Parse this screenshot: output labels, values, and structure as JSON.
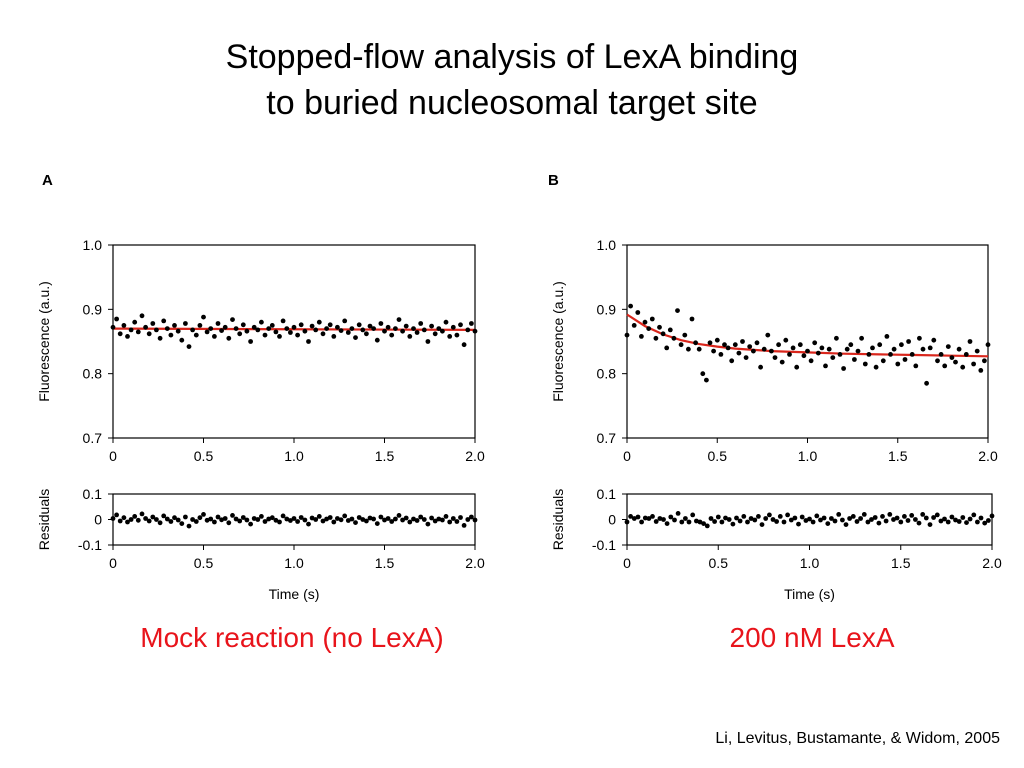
{
  "title": {
    "line1": "Stopped-flow analysis of LexA binding",
    "line2": "to buried nucleosomal target site"
  },
  "panels": [
    {
      "letter": "A",
      "caption": "Mock reaction (no LexA)"
    },
    {
      "letter": "B",
      "caption": "200 nM LexA"
    }
  ],
  "credit": "Li, Levitus, Bustamante, & Widom, 2005",
  "colors": {
    "fit": "#d9261c",
    "points": "#000000",
    "caption": "#e8141b"
  },
  "chart_data": [
    {
      "panel": "A",
      "type": "scatter",
      "xlabel": "",
      "ylabel": "Fluorescence (a.u.)",
      "xlim": [
        0,
        2.0
      ],
      "ylim": [
        0.7,
        1.0
      ],
      "xticks": [
        "0",
        "0.5",
        "1.0",
        "1.5",
        "2.0"
      ],
      "yticks": [
        "0.7",
        "0.8",
        "0.9",
        "1.0"
      ],
      "fit": {
        "type": "line",
        "x": [
          0,
          2.0
        ],
        "y": [
          0.87,
          0.868
        ]
      },
      "points": {
        "x": [
          0.0,
          0.02,
          0.04,
          0.06,
          0.08,
          0.1,
          0.12,
          0.14,
          0.16,
          0.18,
          0.2,
          0.22,
          0.24,
          0.26,
          0.28,
          0.3,
          0.32,
          0.34,
          0.36,
          0.38,
          0.4,
          0.42,
          0.44,
          0.46,
          0.48,
          0.5,
          0.52,
          0.54,
          0.56,
          0.58,
          0.6,
          0.62,
          0.64,
          0.66,
          0.68,
          0.7,
          0.72,
          0.74,
          0.76,
          0.78,
          0.8,
          0.82,
          0.84,
          0.86,
          0.88,
          0.9,
          0.92,
          0.94,
          0.96,
          0.98,
          1.0,
          1.02,
          1.04,
          1.06,
          1.08,
          1.1,
          1.12,
          1.14,
          1.16,
          1.18,
          1.2,
          1.22,
          1.24,
          1.26,
          1.28,
          1.3,
          1.32,
          1.34,
          1.36,
          1.38,
          1.4,
          1.42,
          1.44,
          1.46,
          1.48,
          1.5,
          1.52,
          1.54,
          1.56,
          1.58,
          1.6,
          1.62,
          1.64,
          1.66,
          1.68,
          1.7,
          1.72,
          1.74,
          1.76,
          1.78,
          1.8,
          1.82,
          1.84,
          1.86,
          1.88,
          1.9,
          1.92,
          1.94,
          1.96,
          1.98,
          2.0
        ],
        "y": [
          0.872,
          0.885,
          0.862,
          0.875,
          0.858,
          0.868,
          0.88,
          0.865,
          0.89,
          0.872,
          0.862,
          0.878,
          0.868,
          0.855,
          0.882,
          0.87,
          0.86,
          0.875,
          0.866,
          0.852,
          0.878,
          0.842,
          0.868,
          0.86,
          0.875,
          0.888,
          0.865,
          0.87,
          0.858,
          0.878,
          0.867,
          0.872,
          0.855,
          0.884,
          0.87,
          0.862,
          0.876,
          0.866,
          0.85,
          0.872,
          0.868,
          0.88,
          0.86,
          0.87,
          0.875,
          0.865,
          0.858,
          0.882,
          0.87,
          0.864,
          0.872,
          0.86,
          0.876,
          0.866,
          0.85,
          0.874,
          0.868,
          0.88,
          0.862,
          0.87,
          0.876,
          0.858,
          0.872,
          0.867,
          0.882,
          0.864,
          0.87,
          0.856,
          0.876,
          0.868,
          0.862,
          0.874,
          0.87,
          0.852,
          0.878,
          0.866,
          0.872,
          0.86,
          0.87,
          0.884,
          0.866,
          0.874,
          0.858,
          0.87,
          0.864,
          0.878,
          0.868,
          0.85,
          0.874,
          0.862,
          0.87,
          0.866,
          0.88,
          0.858,
          0.872,
          0.86,
          0.876,
          0.845,
          0.868,
          0.878,
          0.866
        ]
      }
    },
    {
      "panel": "A",
      "type": "scatter",
      "xlabel": "Time (s)",
      "ylabel": "Residuals",
      "xlim": [
        0,
        2.0
      ],
      "ylim": [
        -0.1,
        0.1
      ],
      "xticks": [
        "0",
        "0.5",
        "1.0",
        "1.5",
        "2.0"
      ],
      "yticks": [
        "-0.1",
        "0",
        "0.1"
      ],
      "points": {
        "x": [
          0.0,
          0.02,
          0.04,
          0.06,
          0.08,
          0.1,
          0.12,
          0.14,
          0.16,
          0.18,
          0.2,
          0.22,
          0.24,
          0.26,
          0.28,
          0.3,
          0.32,
          0.34,
          0.36,
          0.38,
          0.4,
          0.42,
          0.44,
          0.46,
          0.48,
          0.5,
          0.52,
          0.54,
          0.56,
          0.58,
          0.6,
          0.62,
          0.64,
          0.66,
          0.68,
          0.7,
          0.72,
          0.74,
          0.76,
          0.78,
          0.8,
          0.82,
          0.84,
          0.86,
          0.88,
          0.9,
          0.92,
          0.94,
          0.96,
          0.98,
          1.0,
          1.02,
          1.04,
          1.06,
          1.08,
          1.1,
          1.12,
          1.14,
          1.16,
          1.18,
          1.2,
          1.22,
          1.24,
          1.26,
          1.28,
          1.3,
          1.32,
          1.34,
          1.36,
          1.38,
          1.4,
          1.42,
          1.44,
          1.46,
          1.48,
          1.5,
          1.52,
          1.54,
          1.56,
          1.58,
          1.6,
          1.62,
          1.64,
          1.66,
          1.68,
          1.7,
          1.72,
          1.74,
          1.76,
          1.78,
          1.8,
          1.82,
          1.84,
          1.86,
          1.88,
          1.9,
          1.92,
          1.94,
          1.96,
          1.98,
          2.0
        ],
        "y": [
          0.004,
          0.018,
          -0.006,
          0.007,
          -0.01,
          0.0,
          0.012,
          -0.003,
          0.022,
          0.004,
          -0.006,
          0.01,
          0.0,
          -0.013,
          0.014,
          0.002,
          -0.008,
          0.007,
          -0.002,
          -0.016,
          0.01,
          -0.026,
          0.0,
          -0.008,
          0.007,
          0.02,
          -0.003,
          0.002,
          -0.01,
          0.01,
          -0.001,
          0.004,
          -0.013,
          0.016,
          0.002,
          -0.006,
          0.008,
          -0.002,
          -0.018,
          0.004,
          0.0,
          0.012,
          -0.008,
          0.002,
          0.007,
          -0.003,
          -0.01,
          0.014,
          0.002,
          -0.004,
          0.004,
          -0.008,
          0.008,
          -0.002,
          -0.018,
          0.006,
          0.0,
          0.012,
          -0.006,
          0.002,
          0.008,
          -0.01,
          0.004,
          -0.001,
          0.014,
          -0.004,
          0.002,
          -0.012,
          0.008,
          0.0,
          -0.006,
          0.006,
          0.002,
          -0.016,
          0.01,
          -0.002,
          0.004,
          -0.008,
          0.002,
          0.016,
          -0.002,
          0.006,
          -0.01,
          0.002,
          -0.004,
          0.01,
          0.0,
          -0.018,
          0.006,
          -0.006,
          0.002,
          -0.002,
          0.012,
          -0.01,
          0.004,
          -0.008,
          0.008,
          -0.023,
          0.0,
          0.01,
          -0.002
        ]
      }
    },
    {
      "panel": "B",
      "type": "scatter",
      "xlabel": "",
      "ylabel": "Fluorescence (a.u.)",
      "xlim": [
        0,
        2.0
      ],
      "ylim": [
        0.7,
        1.0
      ],
      "xticks": [
        "0",
        "0.5",
        "1.0",
        "1.5",
        "2.0"
      ],
      "yticks": [
        "0.7",
        "0.8",
        "0.9",
        "1.0"
      ],
      "fit": {
        "type": "line",
        "x": [
          0.0,
          0.1,
          0.2,
          0.3,
          0.4,
          0.5,
          0.6,
          0.8,
          1.0,
          1.2,
          1.4,
          1.6,
          1.8,
          2.0
        ],
        "y": [
          0.892,
          0.874,
          0.861,
          0.852,
          0.846,
          0.842,
          0.839,
          0.835,
          0.833,
          0.831,
          0.83,
          0.829,
          0.828,
          0.827
        ]
      },
      "points": {
        "x": [
          0.0,
          0.02,
          0.04,
          0.06,
          0.08,
          0.1,
          0.12,
          0.14,
          0.16,
          0.18,
          0.2,
          0.22,
          0.24,
          0.26,
          0.28,
          0.3,
          0.32,
          0.34,
          0.36,
          0.38,
          0.4,
          0.42,
          0.44,
          0.46,
          0.48,
          0.5,
          0.52,
          0.54,
          0.56,
          0.58,
          0.6,
          0.62,
          0.64,
          0.66,
          0.68,
          0.7,
          0.72,
          0.74,
          0.76,
          0.78,
          0.8,
          0.82,
          0.84,
          0.86,
          0.88,
          0.9,
          0.92,
          0.94,
          0.96,
          0.98,
          1.0,
          1.02,
          1.04,
          1.06,
          1.08,
          1.1,
          1.12,
          1.14,
          1.16,
          1.18,
          1.2,
          1.22,
          1.24,
          1.26,
          1.28,
          1.3,
          1.32,
          1.34,
          1.36,
          1.38,
          1.4,
          1.42,
          1.44,
          1.46,
          1.48,
          1.5,
          1.52,
          1.54,
          1.56,
          1.58,
          1.6,
          1.62,
          1.64,
          1.66,
          1.68,
          1.7,
          1.72,
          1.74,
          1.76,
          1.78,
          1.8,
          1.82,
          1.84,
          1.86,
          1.88,
          1.9,
          1.92,
          1.94,
          1.96,
          1.98,
          2.0
        ],
        "y": [
          0.86,
          0.905,
          0.875,
          0.895,
          0.858,
          0.88,
          0.87,
          0.885,
          0.855,
          0.872,
          0.862,
          0.84,
          0.868,
          0.855,
          0.898,
          0.845,
          0.86,
          0.838,
          0.885,
          0.848,
          0.838,
          0.8,
          0.79,
          0.848,
          0.835,
          0.852,
          0.83,
          0.845,
          0.84,
          0.82,
          0.845,
          0.832,
          0.85,
          0.825,
          0.842,
          0.835,
          0.848,
          0.81,
          0.838,
          0.86,
          0.835,
          0.825,
          0.845,
          0.818,
          0.852,
          0.83,
          0.84,
          0.81,
          0.845,
          0.828,
          0.835,
          0.82,
          0.848,
          0.832,
          0.84,
          0.812,
          0.838,
          0.825,
          0.855,
          0.83,
          0.808,
          0.838,
          0.845,
          0.822,
          0.835,
          0.855,
          0.815,
          0.83,
          0.84,
          0.81,
          0.845,
          0.82,
          0.858,
          0.83,
          0.838,
          0.815,
          0.845,
          0.822,
          0.85,
          0.83,
          0.812,
          0.855,
          0.838,
          0.785,
          0.84,
          0.852,
          0.82,
          0.83,
          0.812,
          0.842,
          0.825,
          0.818,
          0.838,
          0.81,
          0.83,
          0.85,
          0.815,
          0.835,
          0.805,
          0.82,
          0.845
        ]
      }
    },
    {
      "panel": "B",
      "type": "scatter",
      "xlabel": "Time (s)",
      "ylabel": "Residuals",
      "xlim": [
        0,
        2.0
      ],
      "ylim": [
        -0.1,
        0.1
      ],
      "xticks": [
        "0",
        "0.5",
        "1.0",
        "1.5",
        "2.0"
      ],
      "yticks": [
        "-0.1",
        "0",
        "0.1"
      ],
      "points": {
        "x": [
          0.0,
          0.02,
          0.04,
          0.06,
          0.08,
          0.1,
          0.12,
          0.14,
          0.16,
          0.18,
          0.2,
          0.22,
          0.24,
          0.26,
          0.28,
          0.3,
          0.32,
          0.34,
          0.36,
          0.38,
          0.4,
          0.42,
          0.44,
          0.46,
          0.48,
          0.5,
          0.52,
          0.54,
          0.56,
          0.58,
          0.6,
          0.62,
          0.64,
          0.66,
          0.68,
          0.7,
          0.72,
          0.74,
          0.76,
          0.78,
          0.8,
          0.82,
          0.84,
          0.86,
          0.88,
          0.9,
          0.92,
          0.94,
          0.96,
          0.98,
          1.0,
          1.02,
          1.04,
          1.06,
          1.08,
          1.1,
          1.12,
          1.14,
          1.16,
          1.18,
          1.2,
          1.22,
          1.24,
          1.26,
          1.28,
          1.3,
          1.32,
          1.34,
          1.36,
          1.38,
          1.4,
          1.42,
          1.44,
          1.46,
          1.48,
          1.5,
          1.52,
          1.54,
          1.56,
          1.58,
          1.6,
          1.62,
          1.64,
          1.66,
          1.68,
          1.7,
          1.72,
          1.74,
          1.76,
          1.78,
          1.8,
          1.82,
          1.84,
          1.86,
          1.88,
          1.9,
          1.92,
          1.94,
          1.96,
          1.98,
          2.0
        ],
        "y": [
          -0.01,
          0.012,
          0.004,
          0.01,
          -0.01,
          0.006,
          0.004,
          0.012,
          -0.008,
          0.004,
          0.0,
          -0.016,
          0.01,
          -0.002,
          0.024,
          -0.01,
          0.004,
          -0.01,
          0.018,
          -0.006,
          -0.01,
          -0.016,
          -0.025,
          0.004,
          -0.008,
          0.01,
          -0.01,
          0.006,
          0.0,
          -0.018,
          0.006,
          -0.006,
          0.012,
          -0.01,
          0.004,
          -0.002,
          0.012,
          -0.02,
          0.004,
          0.018,
          0.0,
          -0.008,
          0.012,
          -0.01,
          0.018,
          -0.002,
          0.006,
          -0.018,
          0.01,
          -0.004,
          0.002,
          -0.01,
          0.014,
          -0.002,
          0.006,
          -0.016,
          0.004,
          -0.006,
          0.02,
          -0.002,
          -0.02,
          0.004,
          0.012,
          -0.008,
          0.004,
          0.02,
          -0.01,
          0.0,
          0.008,
          -0.014,
          0.012,
          -0.006,
          0.02,
          0.0,
          0.006,
          -0.01,
          0.012,
          -0.004,
          0.016,
          0.0,
          -0.014,
          0.02,
          0.006,
          -0.02,
          0.008,
          0.018,
          -0.006,
          0.002,
          -0.01,
          0.01,
          -0.002,
          -0.008,
          0.008,
          -0.012,
          0.002,
          0.018,
          -0.01,
          0.006,
          -0.014,
          -0.004,
          0.014
        ]
      }
    }
  ]
}
